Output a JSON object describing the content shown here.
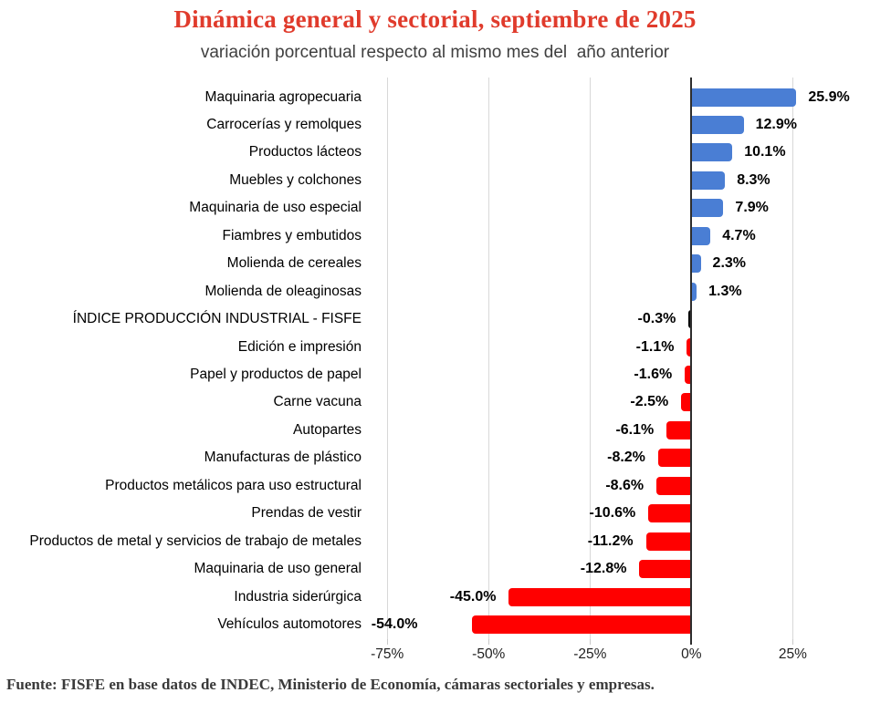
{
  "colors": {
    "positive": "#4A7ED4",
    "negative": "#FF0000",
    "index": "#000000",
    "title": "#E03B2C",
    "gridline": "#D8D8D8",
    "zero_axis": "#2E2E2E"
  },
  "chart_data": {
    "type": "bar",
    "orientation": "horizontal",
    "title": "Dinámica general y sectorial, septiembre de 2025",
    "subtitle": "variación porcentual respecto al mismo mes del  año anterior",
    "source": "Fuente: FISFE en base datos de INDEC, Ministerio de Economía, cámaras sectoriales y empresas.",
    "value_unit": "percent",
    "xlabel": "",
    "ylabel": "",
    "xlim": [
      -80,
      40
    ],
    "grid": true,
    "legend": "none",
    "x_ticks": [
      {
        "value": -75,
        "label": "-75%"
      },
      {
        "value": -50,
        "label": "-50%"
      },
      {
        "value": -25,
        "label": "-25%"
      },
      {
        "value": 0,
        "label": "0%"
      },
      {
        "value": 25,
        "label": "25%"
      }
    ],
    "rows": [
      {
        "label": "Maquinaria agropecuaria",
        "value": 25.9,
        "display": "25.9%",
        "color": "positive"
      },
      {
        "label": "Carrocerías y remolques",
        "value": 12.9,
        "display": "12.9%",
        "color": "positive"
      },
      {
        "label": "Productos lácteos",
        "value": 10.1,
        "display": "10.1%",
        "color": "positive"
      },
      {
        "label": "Muebles y colchones",
        "value": 8.3,
        "display": "8.3%",
        "color": "positive"
      },
      {
        "label": "Maquinaria de uso especial",
        "value": 7.9,
        "display": "7.9%",
        "color": "positive"
      },
      {
        "label": "Fiambres y embutidos",
        "value": 4.7,
        "display": "4.7%",
        "color": "positive"
      },
      {
        "label": "Molienda de cereales",
        "value": 2.3,
        "display": "2.3%",
        "color": "positive"
      },
      {
        "label": "Molienda de oleaginosas",
        "value": 1.3,
        "display": "1.3%",
        "color": "positive"
      },
      {
        "label": "ÍNDICE PRODUCCIÓN INDUSTRIAL - FISFE",
        "value": -0.3,
        "display": "-0.3%",
        "color": "index"
      },
      {
        "label": "Edición e impresión",
        "value": -1.1,
        "display": "-1.1%",
        "color": "negative"
      },
      {
        "label": "Papel y productos de papel",
        "value": -1.6,
        "display": "-1.6%",
        "color": "negative"
      },
      {
        "label": "Carne vacuna",
        "value": -2.5,
        "display": "-2.5%",
        "color": "negative"
      },
      {
        "label": "Autopartes",
        "value": -6.1,
        "display": "-6.1%",
        "color": "negative"
      },
      {
        "label": "Manufacturas de plástico",
        "value": -8.2,
        "display": "-8.2%",
        "color": "negative"
      },
      {
        "label": "Productos metálicos para uso estructural",
        "value": -8.6,
        "display": "-8.6%",
        "color": "negative"
      },
      {
        "label": "Prendas de vestir",
        "value": -10.6,
        "display": "-10.6%",
        "color": "negative"
      },
      {
        "label": "Productos de metal y servicios de trabajo de metales",
        "value": -11.2,
        "display": "-11.2%",
        "color": "negative"
      },
      {
        "label": "Maquinaria de uso general",
        "value": -12.8,
        "display": "-12.8%",
        "color": "negative"
      },
      {
        "label": "Industria siderúrgica",
        "value": -45.0,
        "display": "-45.0%",
        "color": "negative"
      },
      {
        "label": "Vehículos automotores",
        "value": -54.0,
        "display": "-54.0%",
        "color": "negative"
      }
    ]
  }
}
